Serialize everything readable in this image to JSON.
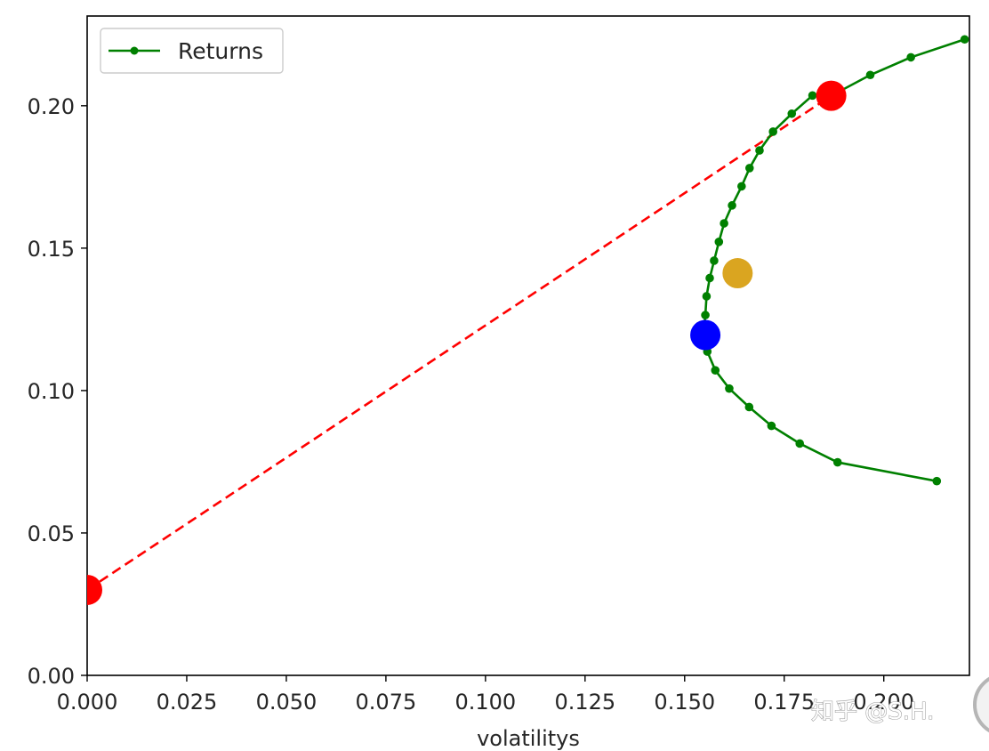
{
  "chart_data": {
    "type": "line",
    "xlabel": "volatilitys",
    "ylabel": "",
    "title": "",
    "xlim": [
      0.0,
      0.2215
    ],
    "ylim": [
      0.0,
      0.2315
    ],
    "xticks": [
      "0.000",
      "0.025",
      "0.050",
      "0.075",
      "0.100",
      "0.125",
      "0.150",
      "0.175",
      "0.200"
    ],
    "xtick_values": [
      0.0,
      0.025,
      0.05,
      0.075,
      0.1,
      0.125,
      0.15,
      0.175,
      0.2
    ],
    "yticks": [
      "0.00",
      "0.05",
      "0.10",
      "0.15",
      "0.20"
    ],
    "ytick_values": [
      0.0,
      0.05,
      0.1,
      0.15,
      0.2
    ],
    "grid": false,
    "legend": {
      "position": "top-left",
      "entries": [
        "Returns"
      ]
    },
    "series": [
      {
        "name": "Returns",
        "color": "#008000",
        "marker": "dot",
        "x": [
          0.2133,
          0.1884,
          0.1789,
          0.1718,
          0.1662,
          0.1612,
          0.1577,
          0.1557,
          0.1549,
          0.1548,
          0.1552,
          0.1555,
          0.1563,
          0.1574,
          0.1586,
          0.1599,
          0.1619,
          0.1643,
          0.1663,
          0.1688,
          0.1722,
          0.1769,
          0.1821,
          0.1868,
          0.1966,
          0.2068,
          0.2203
        ],
        "y": [
          0.0682,
          0.0748,
          0.0814,
          0.0876,
          0.0942,
          0.1007,
          0.1071,
          0.1137,
          0.12,
          0.121,
          0.1265,
          0.1331,
          0.1395,
          0.1456,
          0.1522,
          0.1587,
          0.165,
          0.1717,
          0.1781,
          0.1843,
          0.1909,
          0.1972,
          0.2036,
          0.2035,
          0.2108,
          0.217,
          0.2233
        ]
      }
    ],
    "capital_market_line": {
      "style": "dashed",
      "color": "#ff0000",
      "x": [
        0.0,
        0.1868
      ],
      "y": [
        0.03,
        0.2035
      ]
    },
    "highlight_points": [
      {
        "x": 0.0,
        "y": 0.03,
        "color": "#ff0000"
      },
      {
        "x": 0.1868,
        "y": 0.2035,
        "color": "#ff0000"
      },
      {
        "x": 0.1552,
        "y": 0.1195,
        "color": "#0000ff"
      },
      {
        "x": 0.1633,
        "y": 0.1412,
        "color": "#daa520"
      }
    ]
  },
  "watermark": "知乎 @S.H."
}
